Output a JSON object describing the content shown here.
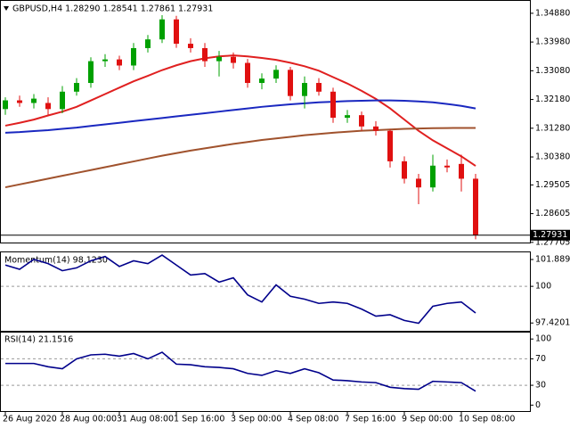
{
  "chart_data": [
    {
      "type": "candlestick",
      "title": "GBPUSD,H4  1.28290 1.28541 1.27861 1.27931",
      "x": [
        "26 Aug 2020",
        null,
        null,
        null,
        "28 Aug 00:00",
        null,
        null,
        null,
        "31 Aug 08:00",
        null,
        null,
        null,
        "1 Sep 16:00",
        null,
        null,
        null,
        "3 Sep 00:00",
        null,
        null,
        null,
        "4 Sep 08:00",
        null,
        null,
        null,
        "7 Sep 16:00",
        null,
        null,
        null,
        "9 Sep 00:00",
        null,
        null,
        null,
        "10 Sep 08:00",
        null
      ],
      "open": [
        1.3188,
        1.32153,
        1.32071,
        1.32071,
        1.3188,
        1.32425,
        1.32698,
        1.3338,
        1.33435,
        1.33244,
        1.33789,
        1.34062,
        1.34689,
        1.33926,
        1.33789,
        1.3338,
        1.33517,
        1.33326,
        1.32698,
        1.32835,
        1.33108,
        1.32289,
        1.32698,
        1.32425,
        1.31608,
        1.31689,
        1.31335,
        1.31199,
        1.30244,
        1.29699,
        1.29426,
        1.30108,
        1.30162,
        1.29699
      ],
      "high": [
        1.3225,
        1.323,
        1.3235,
        1.3225,
        1.326,
        1.3285,
        1.335,
        1.336,
        1.3355,
        1.3395,
        1.342,
        1.3482,
        1.348,
        1.341,
        1.3395,
        1.337,
        1.3365,
        1.3345,
        1.33,
        1.3325,
        1.332,
        1.329,
        1.3285,
        1.3255,
        1.3185,
        1.318,
        1.315,
        1.3125,
        1.304,
        1.2985,
        1.3045,
        1.303,
        1.3045,
        1.2985
      ],
      "low": [
        1.317,
        1.3195,
        1.319,
        1.317,
        1.3175,
        1.323,
        1.3255,
        1.332,
        1.331,
        1.331,
        1.3365,
        1.3395,
        1.338,
        1.3365,
        1.332,
        1.329,
        1.3315,
        1.3255,
        1.325,
        1.327,
        1.3215,
        1.319,
        1.323,
        1.3145,
        1.3145,
        1.312,
        1.3105,
        1.3005,
        1.2955,
        1.289,
        1.293,
        1.299,
        1.293,
        1.278
      ],
      "close": [
        1.32153,
        1.32071,
        1.32207,
        1.3188,
        1.32425,
        1.32698,
        1.3338,
        1.33435,
        1.33244,
        1.33789,
        1.34062,
        1.34689,
        1.33926,
        1.33789,
        1.3338,
        1.33517,
        1.33326,
        1.32698,
        1.32835,
        1.33108,
        1.32289,
        1.32698,
        1.32425,
        1.31608,
        1.31689,
        1.31335,
        1.31199,
        1.30244,
        1.29699,
        1.29426,
        1.30108,
        1.30053,
        1.29699,
        1.27931
      ],
      "up_color": "#00a000",
      "down_color": "#e01010",
      "overlays": [
        {
          "color": "#e02020",
          "values": [
            1.3136,
            1.3145,
            1.3155,
            1.3168,
            1.318,
            1.3195,
            1.3215,
            1.3235,
            1.3255,
            1.3275,
            1.3292,
            1.331,
            1.3325,
            1.3338,
            1.3347,
            1.3353,
            1.3356,
            1.3353,
            1.3348,
            1.3342,
            1.3333,
            1.3322,
            1.3308,
            1.3288,
            1.3268,
            1.3245,
            1.322,
            1.319,
            1.3155,
            1.312,
            1.309,
            1.3065,
            1.304,
            1.301
          ]
        },
        {
          "color": "#1a28c0",
          "values": [
            1.3114,
            1.3116,
            1.3119,
            1.3122,
            1.3126,
            1.313,
            1.3135,
            1.314,
            1.3145,
            1.315,
            1.3155,
            1.316,
            1.3165,
            1.317,
            1.3175,
            1.318,
            1.3185,
            1.319,
            1.3195,
            1.3199,
            1.3203,
            1.3206,
            1.3209,
            1.3211,
            1.3213,
            1.3214,
            1.3215,
            1.3215,
            1.3214,
            1.3212,
            1.3209,
            1.3204,
            1.3198,
            1.319
          ]
        },
        {
          "color": "#a0522d",
          "values": [
            1.2943,
            1.2952,
            1.2961,
            1.297,
            1.2979,
            1.2988,
            1.2997,
            1.3006,
            1.3015,
            1.3024,
            1.3033,
            1.3042,
            1.305,
            1.3058,
            1.3065,
            1.3072,
            1.3079,
            1.3085,
            1.3091,
            1.3096,
            1.3101,
            1.3106,
            1.311,
            1.3114,
            1.3117,
            1.312,
            1.3122,
            1.3124,
            1.3126,
            1.3127,
            1.3128,
            1.31285,
            1.3129,
            1.3129
          ]
        }
      ],
      "ylim": [
        1.277,
        1.3524
      ],
      "yticks": [
        {
          "value": 1.3488,
          "label": "1.34880"
        },
        {
          "value": 1.3398,
          "label": "1.33980"
        },
        {
          "value": 1.3308,
          "label": "1.33080"
        },
        {
          "value": 1.3218,
          "label": "1.32180"
        },
        {
          "value": 1.3128,
          "label": "1.31280"
        },
        {
          "value": 1.3038,
          "label": "1.30380"
        },
        1.29505,
        1.28605,
        1.27705
      ],
      "current_price": 1.27931
    },
    {
      "type": "line",
      "title": "Momentum(14) 98.1230",
      "series": [
        {
          "color": "#00008b",
          "values": [
            101.5,
            101.2,
            101.9,
            101.6,
            101.1,
            101.3,
            101.8,
            102.1,
            101.4,
            101.8,
            101.6,
            102.2,
            101.5,
            100.8,
            100.9,
            100.3,
            100.6,
            99.4,
            98.9,
            100.1,
            99.3,
            99.1,
            98.8,
            98.9,
            98.8,
            98.4,
            97.9,
            98.0,
            97.6,
            97.4,
            98.6,
            98.8,
            98.9,
            98.123
          ]
        }
      ],
      "ylim": [
        96.87,
        102.33
      ],
      "yticks": [
        101.889,
        100,
        97.4201
      ],
      "levels": [
        100
      ]
    },
    {
      "type": "line",
      "title": "RSI(14) 21.1516",
      "series": [
        {
          "color": "#00008b",
          "values": [
            63,
            63,
            63,
            58,
            55,
            70,
            76,
            77,
            74,
            78,
            70,
            80,
            62,
            61,
            58,
            57,
            55,
            48,
            45,
            52,
            48,
            55,
            49,
            38,
            37,
            35,
            34,
            27,
            25,
            24,
            36,
            35,
            34,
            21.1516
          ]
        }
      ],
      "ylim": [
        -9,
        107
      ],
      "yticks": [
        100,
        70,
        30,
        0
      ],
      "levels": [
        70,
        30
      ]
    }
  ]
}
